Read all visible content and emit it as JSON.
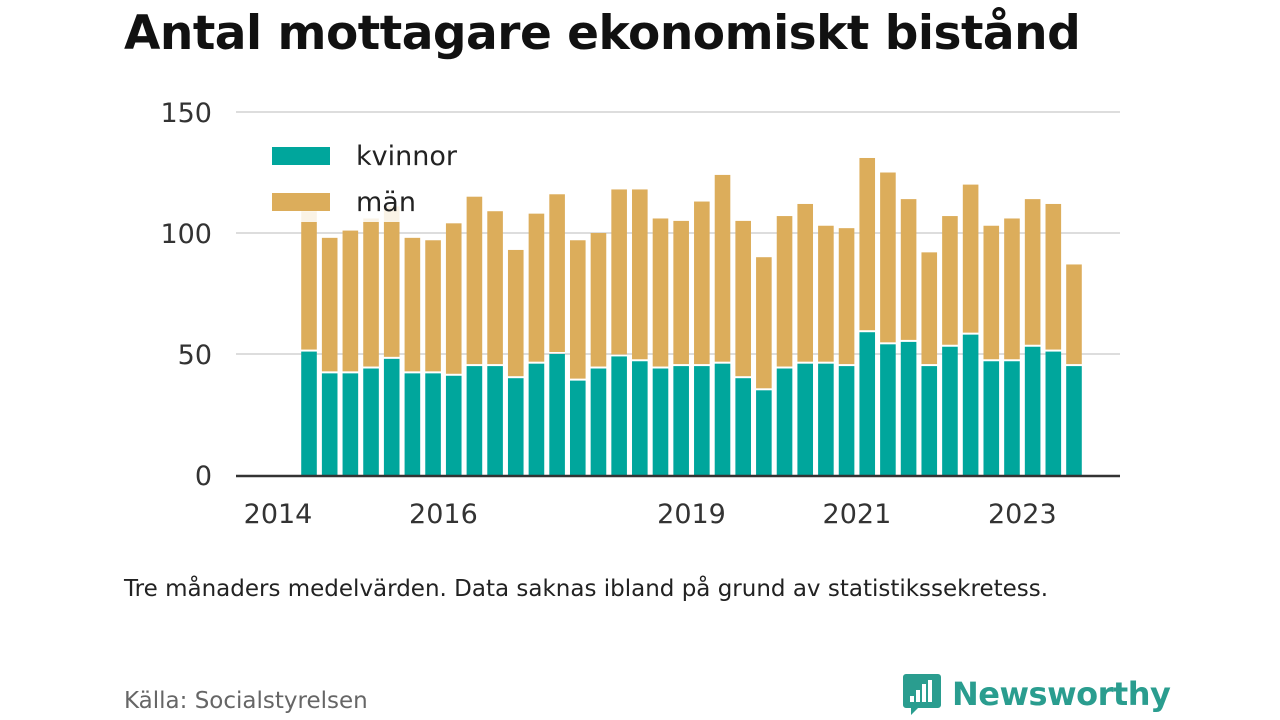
{
  "title": "Antal mottagare ekonomiskt bistånd",
  "note": "Tre månaders medelvärden. Data saknas ibland på grund av statistikssekretess.",
  "source": "Källa: Socialstyrelsen",
  "brand": {
    "name": "Newsworthy",
    "icon": "newsworthy-logo-icon",
    "color": "#2a9d8f"
  },
  "chart_data": {
    "type": "bar",
    "stacked": true,
    "title": "Antal mottagare ekonomiskt bistånd",
    "xlabel": "",
    "ylabel": "",
    "ylim": [
      0,
      150
    ],
    "yticks": [
      0,
      50,
      100,
      150
    ],
    "xticks": [
      "2014",
      "2016",
      "2019",
      "2021",
      "2023"
    ],
    "grid": true,
    "legend_position": "top-left",
    "x": [
      "2014-Q2",
      "2014-Q3",
      "2014-Q4",
      "2015-Q1",
      "2015-Q2",
      "2015-Q3",
      "2015-Q4",
      "2016-Q1",
      "2016-Q2",
      "2016-Q3",
      "2016-Q4",
      "2017-Q1",
      "2017-Q2",
      "2017-Q3",
      "2017-Q4",
      "2018-Q1",
      "2018-Q2",
      "2018-Q3",
      "2018-Q4",
      "2019-Q1",
      "2019-Q2",
      "2019-Q3",
      "2019-Q4",
      "2020-Q1",
      "2020-Q2",
      "2020-Q3",
      "2020-Q4",
      "2021-Q1",
      "2021-Q2",
      "2021-Q3",
      "2021-Q4",
      "2022-Q1",
      "2022-Q2",
      "2022-Q3",
      "2022-Q4",
      "2023-Q1",
      "2023-Q2",
      "2023-Q3"
    ],
    "series": [
      {
        "name": "kvinnor",
        "color": "#00a69c",
        "values": [
          51,
          42,
          42,
          44,
          48,
          42,
          42,
          41,
          45,
          45,
          40,
          46,
          50,
          39,
          44,
          49,
          47,
          44,
          45,
          45,
          46,
          40,
          35,
          44,
          46,
          46,
          45,
          59,
          54,
          55,
          45,
          53,
          58,
          47,
          47,
          53,
          51,
          45
        ]
      },
      {
        "name": "män",
        "color": "#dcad5b",
        "values": [
          58,
          56,
          59,
          62,
          63,
          56,
          55,
          63,
          70,
          64,
          53,
          62,
          66,
          58,
          56,
          69,
          71,
          62,
          60,
          68,
          78,
          65,
          55,
          63,
          66,
          57,
          57,
          72,
          71,
          59,
          47,
          54,
          62,
          56,
          59,
          61,
          61,
          42
        ]
      }
    ]
  }
}
